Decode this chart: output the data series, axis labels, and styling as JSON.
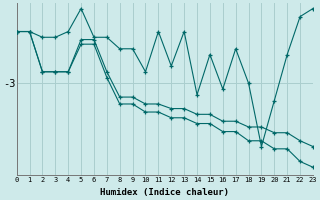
{
  "background_color": "#ceeaea",
  "grid_color": "#aacece",
  "line_color": "#006868",
  "xlabel": "Humidex (Indice chaleur)",
  "ytick_labels": [
    "-3"
  ],
  "ytick_values": [
    -3
  ],
  "xlim": [
    0,
    23
  ],
  "ylim": [
    -3.8,
    -2.3
  ],
  "line1_x": [
    0,
    1,
    2,
    3,
    4,
    5,
    6,
    7,
    8,
    9,
    10,
    11,
    12,
    13,
    14,
    15,
    16,
    17,
    18,
    19,
    20,
    21,
    22,
    23
  ],
  "line1_y": [
    -2.55,
    -2.55,
    -2.6,
    -2.6,
    -2.55,
    -2.35,
    -2.6,
    -2.6,
    -2.7,
    -2.7,
    -2.9,
    -2.55,
    -2.85,
    -2.55,
    -3.1,
    -2.75,
    -3.05,
    -2.7,
    -3.0,
    -3.55,
    -3.15,
    -2.75,
    -2.42,
    -2.35
  ],
  "line2_x": [
    0,
    1,
    2,
    3,
    4,
    5,
    6,
    7,
    8,
    9,
    10,
    11,
    12,
    13,
    14,
    15,
    16,
    17,
    18,
    19,
    20,
    21,
    22,
    23
  ],
  "line2_y": [
    -2.55,
    -2.55,
    -2.9,
    -2.9,
    -2.9,
    -2.62,
    -2.62,
    -2.9,
    -3.12,
    -3.12,
    -3.18,
    -3.18,
    -3.22,
    -3.22,
    -3.27,
    -3.27,
    -3.33,
    -3.33,
    -3.38,
    -3.38,
    -3.43,
    -3.43,
    -3.5,
    -3.55
  ],
  "line3_x": [
    0,
    1,
    2,
    3,
    4,
    5,
    6,
    7,
    8,
    9,
    10,
    11,
    12,
    13,
    14,
    15,
    16,
    17,
    18,
    19,
    20,
    21,
    22,
    23
  ],
  "line3_y": [
    -2.55,
    -2.55,
    -2.9,
    -2.9,
    -2.9,
    -2.66,
    -2.66,
    -2.95,
    -3.18,
    -3.18,
    -3.25,
    -3.25,
    -3.3,
    -3.3,
    -3.35,
    -3.35,
    -3.42,
    -3.42,
    -3.5,
    -3.5,
    -3.57,
    -3.57,
    -3.68,
    -3.73
  ]
}
